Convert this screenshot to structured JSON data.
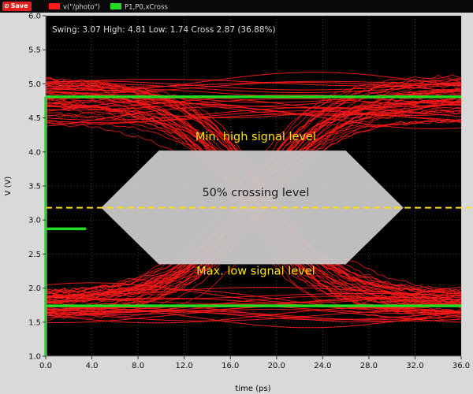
{
  "toolbar": {
    "save_label": "Save",
    "save_icon": "⊘"
  },
  "colors": {
    "background": "#000000",
    "axis_area": "#d9d9d9",
    "trace": "#ff1a1a",
    "marker": "#22dd22",
    "mask": "#c8c8c8",
    "crossing_line": "#ffe000",
    "annotation_text": "#ffe600"
  },
  "chart_data": {
    "type": "line",
    "title": "",
    "xlabel": "time (ps)",
    "ylabel": "V (V)",
    "xlim": [
      0,
      36
    ],
    "ylim": [
      1,
      6
    ],
    "x_ticks": [
      "0.0",
      "4.0",
      "8.0",
      "12.0",
      "16.0",
      "20.0",
      "24.0",
      "28.0",
      "32.0",
      "36.0"
    ],
    "y_ticks": [
      "1.0",
      "1.5",
      "2.0",
      "2.5",
      "3.0",
      "3.5",
      "4.0",
      "4.5",
      "5.0",
      "5.5",
      "6.0"
    ],
    "legend": {
      "placement": "top-left",
      "entries": [
        {
          "name": "v(\"/photo\")",
          "color": "#ff1a1a"
        },
        {
          "name": "P1,P0,xCross",
          "color": "#22dd22"
        }
      ]
    },
    "measurement_text": "Swing: 3.07 High: 4.81 Low: 1.74 Cross 2.87 (36.88%)",
    "measurements": {
      "swing": 3.07,
      "high": 4.81,
      "low": 1.74,
      "cross": 2.87,
      "cross_percent": 36.88
    },
    "eye_diagram": {
      "period_ps": 36,
      "high_band": [
        4.45,
        5.15
      ],
      "low_band": [
        1.55,
        1.95
      ],
      "crossing_time_ps": 0
    },
    "markers": [
      {
        "name": "high",
        "y": 4.81,
        "x": [
          0,
          36
        ]
      },
      {
        "name": "low",
        "y": 1.74,
        "x": [
          0,
          36
        ]
      },
      {
        "name": "cross",
        "y": 2.87,
        "x": [
          0,
          3.5
        ]
      },
      {
        "name": "vertical",
        "x": 0,
        "y": [
          1.0,
          4.81
        ]
      }
    ],
    "crossing_level": 3.18,
    "mask_polygon": [
      [
        4.8,
        3.18
      ],
      [
        9.8,
        4.02
      ],
      [
        26.0,
        4.02
      ],
      [
        31.0,
        3.18
      ],
      [
        26.0,
        2.35
      ],
      [
        9.8,
        2.35
      ]
    ],
    "annotations": [
      {
        "text": "Min. high signal level",
        "x": 18.2,
        "y": 4.17
      },
      {
        "text": "50% crossing level",
        "x": 18.2,
        "y": 3.35
      },
      {
        "text": "Max. low signal level",
        "x": 18.2,
        "y": 2.2
      }
    ]
  }
}
